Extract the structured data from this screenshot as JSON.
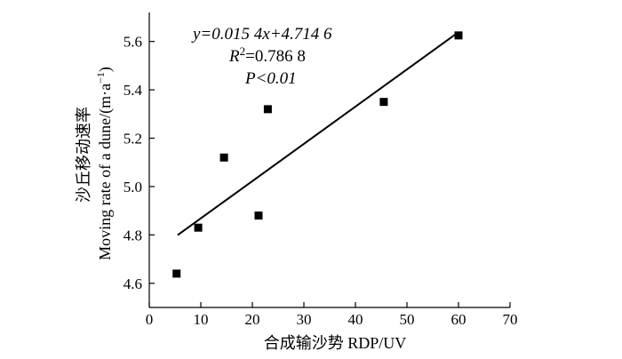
{
  "chart_data": {
    "type": "scatter",
    "xlabel": "合成输沙势 RDP/UV",
    "ylabel_cn": "沙丘移动速率",
    "ylabel_en": "Moving rate of a dune/(m·a",
    "ylabel_sup": "−1",
    "ylabel_close": ")",
    "xlim": [
      0,
      70
    ],
    "ylim": [
      4.5,
      5.72
    ],
    "xticks": [
      0,
      10,
      20,
      30,
      40,
      50,
      60,
      70
    ],
    "xtick_labels": [
      "0",
      "10",
      "20",
      "30",
      "40",
      "50",
      "60",
      "70"
    ],
    "yticks": [
      4.6,
      4.8,
      5.0,
      5.2,
      5.4,
      5.6
    ],
    "ytick_labels": [
      "4.6",
      "4.8",
      "5.0",
      "5.2",
      "5.4",
      "5.6"
    ],
    "points": [
      {
        "x": 5.3,
        "y": 4.64
      },
      {
        "x": 9.5,
        "y": 4.83
      },
      {
        "x": 14.5,
        "y": 5.12
      },
      {
        "x": 21.2,
        "y": 4.88
      },
      {
        "x": 23.0,
        "y": 5.32
      },
      {
        "x": 45.5,
        "y": 5.35
      },
      {
        "x": 60.0,
        "y": 5.625
      }
    ],
    "fit": {
      "slope": 0.0154,
      "intercept": 4.7146,
      "x_range": [
        5.5,
        60
      ]
    },
    "annotations": {
      "equation": "y=0.015 4x+4.714 6",
      "r2_prefix": "R",
      "r2_sup": "2",
      "r2_value": "=0.786 8",
      "p_value": "P<0.01"
    }
  }
}
